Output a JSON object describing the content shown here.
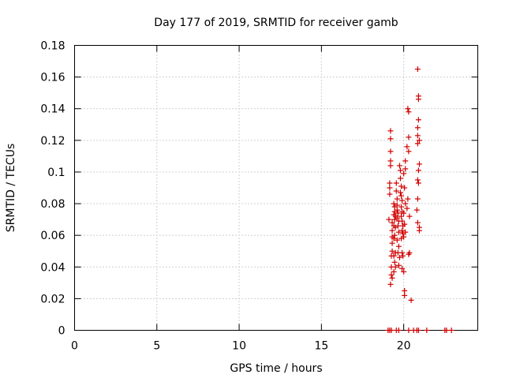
{
  "chart_data": {
    "type": "scatter",
    "title": "Day 177 of 2019, SRMTID for receiver gamb",
    "xlabel": "GPS time / hours",
    "ylabel": "SRMTID / TECUs",
    "xlim": [
      0,
      24.5
    ],
    "ylim": [
      0,
      0.18
    ],
    "xticks": [
      0,
      5,
      10,
      15,
      20
    ],
    "xtick_labels": [
      "0",
      "5",
      "10",
      "15",
      "20"
    ],
    "yticks": [
      0,
      0.02,
      0.04,
      0.06,
      0.08,
      0.1,
      0.12,
      0.14,
      0.16,
      0.18
    ],
    "ytick_labels": [
      "0",
      "0.02",
      "0.04",
      "0.06",
      "0.08",
      "0.1",
      "0.12",
      "0.14",
      "0.16",
      "0.18"
    ],
    "grid": true,
    "legend": "none",
    "marker": "+",
    "color": "#d00000",
    "points": [
      [
        19.05,
        0.0
      ],
      [
        19.15,
        0.0
      ],
      [
        19.25,
        0.0
      ],
      [
        19.55,
        0.0
      ],
      [
        19.7,
        0.0
      ],
      [
        20.3,
        0.0
      ],
      [
        20.6,
        0.0
      ],
      [
        20.8,
        0.0
      ],
      [
        20.9,
        0.0
      ],
      [
        21.4,
        0.0
      ],
      [
        22.5,
        0.0
      ],
      [
        22.6,
        0.0
      ],
      [
        22.9,
        0.0
      ],
      [
        19.2,
        0.126
      ],
      [
        19.2,
        0.121
      ],
      [
        19.2,
        0.113
      ],
      [
        19.2,
        0.107
      ],
      [
        19.2,
        0.104
      ],
      [
        19.15,
        0.093
      ],
      [
        19.15,
        0.09
      ],
      [
        19.15,
        0.086
      ],
      [
        19.1,
        0.07
      ],
      [
        19.3,
        0.068
      ],
      [
        19.3,
        0.063
      ],
      [
        19.3,
        0.059
      ],
      [
        19.3,
        0.055
      ],
      [
        19.3,
        0.05
      ],
      [
        19.25,
        0.047
      ],
      [
        19.25,
        0.04
      ],
      [
        19.25,
        0.035
      ],
      [
        19.3,
        0.033
      ],
      [
        19.2,
        0.029
      ],
      [
        19.4,
        0.08
      ],
      [
        19.45,
        0.078
      ],
      [
        19.45,
        0.075
      ],
      [
        19.4,
        0.073
      ],
      [
        19.5,
        0.072
      ],
      [
        19.45,
        0.07
      ],
      [
        19.4,
        0.066
      ],
      [
        19.5,
        0.065
      ],
      [
        19.45,
        0.06
      ],
      [
        19.4,
        0.058
      ],
      [
        19.5,
        0.049
      ],
      [
        19.4,
        0.047
      ],
      [
        19.45,
        0.043
      ],
      [
        19.5,
        0.04
      ],
      [
        19.4,
        0.037
      ],
      [
        19.55,
        0.093
      ],
      [
        19.55,
        0.088
      ],
      [
        19.6,
        0.083
      ],
      [
        19.6,
        0.079
      ],
      [
        19.6,
        0.076
      ],
      [
        19.65,
        0.074
      ],
      [
        19.6,
        0.071
      ],
      [
        19.7,
        0.069
      ],
      [
        19.65,
        0.066
      ],
      [
        19.7,
        0.062
      ],
      [
        19.6,
        0.057
      ],
      [
        19.7,
        0.053
      ],
      [
        19.65,
        0.049
      ],
      [
        19.75,
        0.046
      ],
      [
        19.7,
        0.041
      ],
      [
        19.75,
        0.104
      ],
      [
        19.8,
        0.101
      ],
      [
        19.8,
        0.096
      ],
      [
        19.85,
        0.091
      ],
      [
        19.8,
        0.087
      ],
      [
        19.85,
        0.085
      ],
      [
        19.9,
        0.082
      ],
      [
        19.85,
        0.078
      ],
      [
        19.9,
        0.075
      ],
      [
        19.85,
        0.072
      ],
      [
        19.9,
        0.069
      ],
      [
        19.95,
        0.066
      ],
      [
        19.9,
        0.063
      ],
      [
        19.95,
        0.061
      ],
      [
        19.85,
        0.058
      ],
      [
        19.9,
        0.049
      ],
      [
        19.95,
        0.047
      ],
      [
        19.9,
        0.039
      ],
      [
        20.0,
        0.037
      ],
      [
        20.05,
        0.025
      ],
      [
        20.05,
        0.022
      ],
      [
        20.1,
        0.107
      ],
      [
        20.1,
        0.102
      ],
      [
        20.0,
        0.099
      ],
      [
        20.05,
        0.09
      ],
      [
        20.1,
        0.08
      ],
      [
        20.0,
        0.074
      ],
      [
        20.05,
        0.067
      ],
      [
        20.1,
        0.062
      ],
      [
        20.0,
        0.059
      ],
      [
        20.25,
        0.14
      ],
      [
        20.3,
        0.138
      ],
      [
        20.2,
        0.116
      ],
      [
        20.3,
        0.113
      ],
      [
        20.3,
        0.122
      ],
      [
        20.25,
        0.083
      ],
      [
        20.2,
        0.077
      ],
      [
        20.35,
        0.072
      ],
      [
        20.35,
        0.049
      ],
      [
        20.3,
        0.048
      ],
      [
        20.45,
        0.019
      ],
      [
        20.85,
        0.165
      ],
      [
        20.9,
        0.148
      ],
      [
        20.9,
        0.146
      ],
      [
        20.9,
        0.133
      ],
      [
        20.85,
        0.128
      ],
      [
        20.85,
        0.123
      ],
      [
        20.95,
        0.12
      ],
      [
        20.85,
        0.118
      ],
      [
        20.95,
        0.105
      ],
      [
        20.9,
        0.101
      ],
      [
        20.85,
        0.095
      ],
      [
        20.9,
        0.093
      ],
      [
        20.85,
        0.083
      ],
      [
        20.8,
        0.076
      ],
      [
        20.85,
        0.068
      ],
      [
        20.95,
        0.065
      ],
      [
        20.95,
        0.063
      ]
    ]
  }
}
